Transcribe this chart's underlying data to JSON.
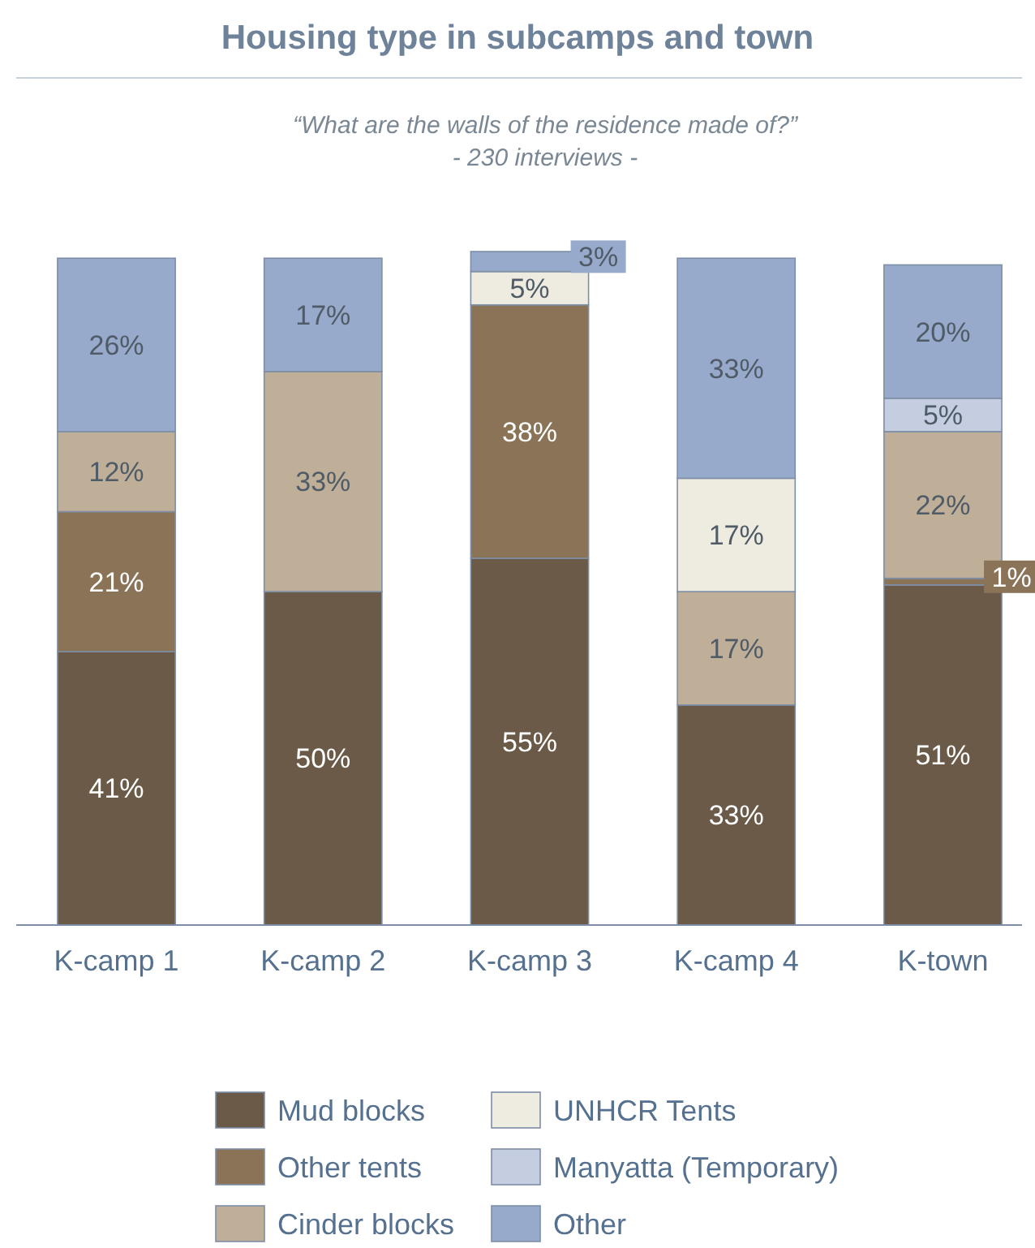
{
  "chart_data": {
    "type": "bar",
    "stacked": true,
    "title": "Housing type in subcamps and town",
    "subtitle": "“What are the walls of the residence made of?”\n- 230 interviews -",
    "categories": [
      "K-camp 1",
      "K-camp 2",
      "K-camp 3",
      "K-camp 4",
      "K-town"
    ],
    "legend": "bottom",
    "series": [
      {
        "name": "Mud blocks",
        "color": "#6b5a47",
        "values": [
          41,
          50,
          55,
          33,
          51
        ],
        "value_labels": [
          "41%",
          "50%",
          "55%",
          "33%",
          "51%"
        ]
      },
      {
        "name": "Other tents",
        "color": "#8b7358",
        "values": [
          21,
          null,
          38,
          null,
          1
        ],
        "value_labels": [
          "21%",
          null,
          "38%",
          null,
          "1%"
        ]
      },
      {
        "name": "Cinder blocks",
        "color": "#bfae98",
        "values": [
          12,
          33,
          null,
          17,
          22
        ],
        "value_labels": [
          "12%",
          "33%",
          null,
          "17%",
          "22%"
        ]
      },
      {
        "name": "UNHCR Tents",
        "color": "#eeebe0",
        "values": [
          null,
          null,
          5,
          17,
          null
        ],
        "value_labels": [
          null,
          null,
          "5%",
          "17%",
          null
        ]
      },
      {
        "name": "Manyatta (Temporary)",
        "color": "#c5cde0",
        "values": [
          null,
          null,
          null,
          null,
          5
        ],
        "value_labels": [
          null,
          null,
          null,
          null,
          "5%"
        ]
      },
      {
        "name": "Other",
        "color": "#98aacb",
        "values": [
          26,
          17,
          3,
          33,
          20
        ],
        "value_labels": [
          "26%",
          "17%",
          "3%",
          "33%",
          "20%"
        ]
      }
    ]
  }
}
